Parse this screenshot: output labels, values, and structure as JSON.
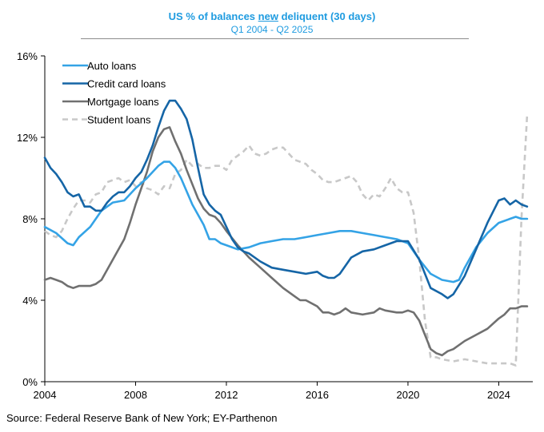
{
  "chart_data": {
    "type": "line",
    "title": {
      "pre": "US % of balances ",
      "underlined": "new",
      "post": " deliquent (30 days)"
    },
    "subtitle": "Q1 2004 - Q2 2025",
    "source": "Source: Federal Reserve Bank of New York; EY-Parthenon",
    "xlim": [
      2004,
      2025.5
    ],
    "ylim": [
      0,
      16
    ],
    "x_ticks": [
      {
        "value": 2004,
        "label": "2004"
      },
      {
        "value": 2008,
        "label": "2008"
      },
      {
        "value": 2012,
        "label": "2012"
      },
      {
        "value": 2016,
        "label": "2016"
      },
      {
        "value": 2020,
        "label": "2020"
      },
      {
        "value": 2024,
        "label": "2024"
      }
    ],
    "y_ticks": [
      {
        "value": 0,
        "label": "0%"
      },
      {
        "value": 4,
        "label": "4%"
      },
      {
        "value": 8,
        "label": "8%"
      },
      {
        "value": 12,
        "label": "12%"
      },
      {
        "value": 16,
        "label": "16%"
      }
    ],
    "legend_position": "top-left",
    "series": [
      {
        "name": "Auto loans",
        "color": "#34a3e6",
        "dashed": false,
        "points": [
          [
            2004.0,
            7.6
          ],
          [
            2004.5,
            7.3
          ],
          [
            2005.0,
            6.8
          ],
          [
            2005.25,
            6.7
          ],
          [
            2005.5,
            7.1
          ],
          [
            2006.0,
            7.6
          ],
          [
            2006.5,
            8.4
          ],
          [
            2007.0,
            8.8
          ],
          [
            2007.5,
            8.9
          ],
          [
            2008.0,
            9.5
          ],
          [
            2008.5,
            10.0
          ],
          [
            2009.0,
            10.6
          ],
          [
            2009.25,
            10.8
          ],
          [
            2009.5,
            10.8
          ],
          [
            2009.75,
            10.5
          ],
          [
            2010.0,
            10.0
          ],
          [
            2010.5,
            8.7
          ],
          [
            2011.0,
            7.7
          ],
          [
            2011.25,
            7.0
          ],
          [
            2011.5,
            7.0
          ],
          [
            2011.75,
            6.8
          ],
          [
            2012.0,
            6.7
          ],
          [
            2012.5,
            6.5
          ],
          [
            2013.0,
            6.6
          ],
          [
            2013.5,
            6.8
          ],
          [
            2014.0,
            6.9
          ],
          [
            2014.5,
            7.0
          ],
          [
            2015.0,
            7.0
          ],
          [
            2015.5,
            7.1
          ],
          [
            2016.0,
            7.2
          ],
          [
            2016.5,
            7.3
          ],
          [
            2017.0,
            7.4
          ],
          [
            2017.5,
            7.4
          ],
          [
            2018.0,
            7.3
          ],
          [
            2018.5,
            7.2
          ],
          [
            2019.0,
            7.1
          ],
          [
            2019.5,
            7.0
          ],
          [
            2020.0,
            6.8
          ],
          [
            2020.5,
            6.0
          ],
          [
            2021.0,
            5.3
          ],
          [
            2021.5,
            5.0
          ],
          [
            2022.0,
            4.9
          ],
          [
            2022.25,
            5.0
          ],
          [
            2022.5,
            5.6
          ],
          [
            2023.0,
            6.6
          ],
          [
            2023.5,
            7.3
          ],
          [
            2024.0,
            7.8
          ],
          [
            2024.5,
            8.0
          ],
          [
            2024.75,
            8.1
          ],
          [
            2025.0,
            8.0
          ],
          [
            2025.25,
            8.0
          ]
        ]
      },
      {
        "name": "Credit card loans",
        "color": "#1565a6",
        "dashed": false,
        "points": [
          [
            2004.0,
            11.0
          ],
          [
            2004.25,
            10.5
          ],
          [
            2004.5,
            10.2
          ],
          [
            2004.75,
            9.8
          ],
          [
            2005.0,
            9.3
          ],
          [
            2005.25,
            9.1
          ],
          [
            2005.5,
            9.2
          ],
          [
            2005.75,
            8.6
          ],
          [
            2006.0,
            8.6
          ],
          [
            2006.25,
            8.4
          ],
          [
            2006.5,
            8.4
          ],
          [
            2006.75,
            8.8
          ],
          [
            2007.0,
            9.1
          ],
          [
            2007.25,
            9.3
          ],
          [
            2007.5,
            9.3
          ],
          [
            2007.75,
            9.6
          ],
          [
            2008.0,
            10.0
          ],
          [
            2008.25,
            10.3
          ],
          [
            2008.5,
            10.9
          ],
          [
            2008.75,
            11.6
          ],
          [
            2009.0,
            12.5
          ],
          [
            2009.25,
            13.3
          ],
          [
            2009.5,
            13.8
          ],
          [
            2009.75,
            13.8
          ],
          [
            2010.0,
            13.4
          ],
          [
            2010.25,
            12.9
          ],
          [
            2010.5,
            11.9
          ],
          [
            2010.75,
            10.5
          ],
          [
            2011.0,
            9.2
          ],
          [
            2011.25,
            8.7
          ],
          [
            2011.5,
            8.4
          ],
          [
            2011.75,
            8.2
          ],
          [
            2012.0,
            7.6
          ],
          [
            2012.25,
            7.0
          ],
          [
            2012.5,
            6.6
          ],
          [
            2012.75,
            6.4
          ],
          [
            2013.0,
            6.3
          ],
          [
            2013.5,
            5.9
          ],
          [
            2014.0,
            5.6
          ],
          [
            2014.5,
            5.5
          ],
          [
            2015.0,
            5.4
          ],
          [
            2015.5,
            5.3
          ],
          [
            2016.0,
            5.4
          ],
          [
            2016.25,
            5.2
          ],
          [
            2016.5,
            5.1
          ],
          [
            2016.75,
            5.1
          ],
          [
            2017.0,
            5.3
          ],
          [
            2017.5,
            6.1
          ],
          [
            2018.0,
            6.4
          ],
          [
            2018.5,
            6.5
          ],
          [
            2019.0,
            6.7
          ],
          [
            2019.5,
            6.9
          ],
          [
            2020.0,
            6.9
          ],
          [
            2020.5,
            6.0
          ],
          [
            2021.0,
            4.6
          ],
          [
            2021.5,
            4.3
          ],
          [
            2021.75,
            4.1
          ],
          [
            2022.0,
            4.3
          ],
          [
            2022.5,
            5.2
          ],
          [
            2023.0,
            6.5
          ],
          [
            2023.5,
            7.8
          ],
          [
            2024.0,
            8.9
          ],
          [
            2024.25,
            9.0
          ],
          [
            2024.5,
            8.7
          ],
          [
            2024.75,
            8.9
          ],
          [
            2025.0,
            8.7
          ],
          [
            2025.25,
            8.6
          ]
        ]
      },
      {
        "name": "Mortgage loans",
        "color": "#707070",
        "dashed": false,
        "points": [
          [
            2004.0,
            5.0
          ],
          [
            2004.25,
            5.1
          ],
          [
            2004.5,
            5.0
          ],
          [
            2004.75,
            4.9
          ],
          [
            2005.0,
            4.7
          ],
          [
            2005.25,
            4.6
          ],
          [
            2005.5,
            4.7
          ],
          [
            2006.0,
            4.7
          ],
          [
            2006.25,
            4.8
          ],
          [
            2006.5,
            5.0
          ],
          [
            2006.75,
            5.5
          ],
          [
            2007.0,
            6.0
          ],
          [
            2007.25,
            6.5
          ],
          [
            2007.5,
            7.0
          ],
          [
            2007.75,
            7.8
          ],
          [
            2008.0,
            8.7
          ],
          [
            2008.25,
            9.5
          ],
          [
            2008.5,
            10.3
          ],
          [
            2008.75,
            11.3
          ],
          [
            2009.0,
            12.0
          ],
          [
            2009.25,
            12.4
          ],
          [
            2009.5,
            12.5
          ],
          [
            2009.75,
            11.8
          ],
          [
            2010.0,
            11.2
          ],
          [
            2010.25,
            10.4
          ],
          [
            2010.5,
            9.7
          ],
          [
            2010.75,
            9.0
          ],
          [
            2011.0,
            8.5
          ],
          [
            2011.25,
            8.2
          ],
          [
            2011.5,
            8.1
          ],
          [
            2011.75,
            7.8
          ],
          [
            2012.0,
            7.4
          ],
          [
            2012.5,
            6.7
          ],
          [
            2013.0,
            6.1
          ],
          [
            2013.5,
            5.6
          ],
          [
            2014.0,
            5.1
          ],
          [
            2014.5,
            4.6
          ],
          [
            2015.0,
            4.2
          ],
          [
            2015.25,
            4.0
          ],
          [
            2015.5,
            4.0
          ],
          [
            2016.0,
            3.7
          ],
          [
            2016.25,
            3.4
          ],
          [
            2016.5,
            3.4
          ],
          [
            2016.75,
            3.3
          ],
          [
            2017.0,
            3.4
          ],
          [
            2017.25,
            3.6
          ],
          [
            2017.5,
            3.4
          ],
          [
            2018.0,
            3.3
          ],
          [
            2018.5,
            3.4
          ],
          [
            2018.75,
            3.6
          ],
          [
            2019.0,
            3.5
          ],
          [
            2019.5,
            3.4
          ],
          [
            2019.75,
            3.4
          ],
          [
            2020.0,
            3.5
          ],
          [
            2020.25,
            3.4
          ],
          [
            2020.5,
            3.0
          ],
          [
            2020.75,
            2.3
          ],
          [
            2021.0,
            1.6
          ],
          [
            2021.25,
            1.4
          ],
          [
            2021.5,
            1.3
          ],
          [
            2021.75,
            1.5
          ],
          [
            2022.0,
            1.6
          ],
          [
            2022.5,
            2.0
          ],
          [
            2023.0,
            2.3
          ],
          [
            2023.5,
            2.6
          ],
          [
            2024.0,
            3.1
          ],
          [
            2024.25,
            3.3
          ],
          [
            2024.5,
            3.6
          ],
          [
            2024.75,
            3.6
          ],
          [
            2025.0,
            3.7
          ],
          [
            2025.25,
            3.7
          ]
        ]
      },
      {
        "name": "Student loans",
        "color": "#c8c8c8",
        "dashed": true,
        "points": [
          [
            2004.0,
            7.4
          ],
          [
            2004.25,
            7.2
          ],
          [
            2004.5,
            7.1
          ],
          [
            2004.75,
            7.4
          ],
          [
            2005.0,
            8.0
          ],
          [
            2005.25,
            8.5
          ],
          [
            2005.5,
            8.9
          ],
          [
            2005.75,
            8.9
          ],
          [
            2006.0,
            8.8
          ],
          [
            2006.25,
            9.2
          ],
          [
            2006.5,
            9.3
          ],
          [
            2006.75,
            9.8
          ],
          [
            2007.0,
            9.9
          ],
          [
            2007.25,
            10.0
          ],
          [
            2007.5,
            9.8
          ],
          [
            2007.75,
            9.9
          ],
          [
            2008.0,
            9.6
          ],
          [
            2008.25,
            9.8
          ],
          [
            2008.5,
            9.5
          ],
          [
            2008.75,
            9.4
          ],
          [
            2009.0,
            9.2
          ],
          [
            2009.25,
            9.6
          ],
          [
            2009.5,
            9.5
          ],
          [
            2009.75,
            10.2
          ],
          [
            2010.0,
            10.4
          ],
          [
            2010.25,
            10.9
          ],
          [
            2010.5,
            10.6
          ],
          [
            2010.75,
            10.7
          ],
          [
            2011.0,
            10.5
          ],
          [
            2011.25,
            10.5
          ],
          [
            2011.5,
            10.6
          ],
          [
            2011.75,
            10.6
          ],
          [
            2012.0,
            10.4
          ],
          [
            2012.25,
            10.9
          ],
          [
            2012.5,
            11.1
          ],
          [
            2012.75,
            11.3
          ],
          [
            2013.0,
            11.6
          ],
          [
            2013.25,
            11.2
          ],
          [
            2013.5,
            11.1
          ],
          [
            2013.75,
            11.2
          ],
          [
            2014.0,
            11.4
          ],
          [
            2014.25,
            11.5
          ],
          [
            2014.5,
            11.5
          ],
          [
            2014.75,
            11.2
          ],
          [
            2015.0,
            10.9
          ],
          [
            2015.25,
            10.8
          ],
          [
            2015.5,
            10.7
          ],
          [
            2015.75,
            10.4
          ],
          [
            2016.0,
            10.2
          ],
          [
            2016.25,
            9.9
          ],
          [
            2016.5,
            9.8
          ],
          [
            2016.75,
            9.8
          ],
          [
            2017.0,
            9.9
          ],
          [
            2017.25,
            10.0
          ],
          [
            2017.5,
            10.1
          ],
          [
            2017.75,
            9.8
          ],
          [
            2018.0,
            9.2
          ],
          [
            2018.25,
            8.9
          ],
          [
            2018.5,
            9.2
          ],
          [
            2018.75,
            9.1
          ],
          [
            2019.0,
            9.5
          ],
          [
            2019.25,
            10.0
          ],
          [
            2019.5,
            9.5
          ],
          [
            2019.75,
            9.3
          ],
          [
            2020.0,
            9.3
          ],
          [
            2020.25,
            8.3
          ],
          [
            2020.5,
            6.0
          ],
          [
            2020.75,
            3.0
          ],
          [
            2021.0,
            1.2
          ],
          [
            2021.25,
            1.2
          ],
          [
            2021.5,
            1.1
          ],
          [
            2022.0,
            1.0
          ],
          [
            2022.5,
            1.1
          ],
          [
            2023.0,
            1.0
          ],
          [
            2023.5,
            0.9
          ],
          [
            2024.0,
            0.9
          ],
          [
            2024.5,
            0.9
          ],
          [
            2024.75,
            0.8
          ],
          [
            2025.0,
            8.0
          ],
          [
            2025.25,
            13.1
          ]
        ]
      }
    ]
  }
}
